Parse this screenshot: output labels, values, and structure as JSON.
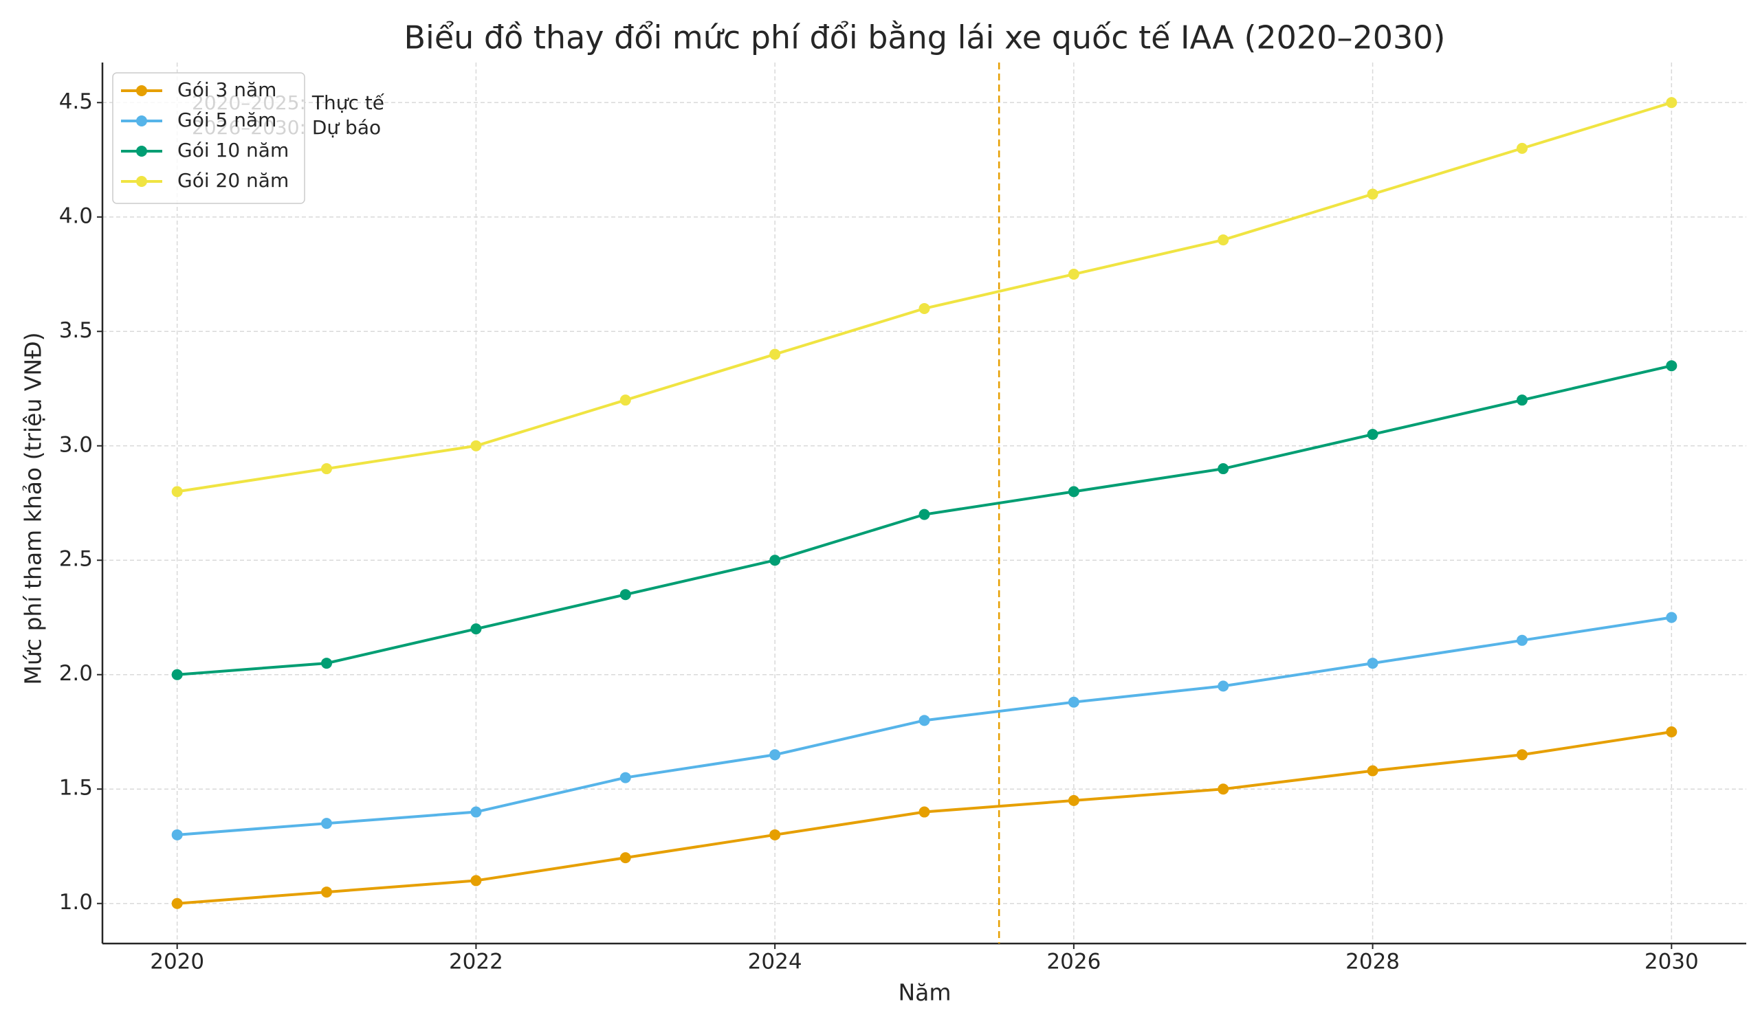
{
  "chart_data": {
    "type": "line",
    "title": "Biểu đồ thay đổi mức phí đổi bằng lái xe quốc tế IAA (2020–2030)",
    "x_label": "Năm",
    "y_label": "Mức phí tham khảo (triệu VNĐ)",
    "x": [
      2020,
      2021,
      2022,
      2023,
      2024,
      2025,
      2026,
      2027,
      2028,
      2029,
      2030
    ],
    "series": [
      {
        "name": "Gói 3 năm",
        "color": "#E69F00",
        "values": [
          1.0,
          1.05,
          1.1,
          1.2,
          1.3,
          1.4,
          1.45,
          1.5,
          1.58,
          1.65,
          1.75
        ]
      },
      {
        "name": "Gói 5 năm",
        "color": "#56B4E9",
        "values": [
          1.3,
          1.35,
          1.4,
          1.55,
          1.65,
          1.8,
          1.88,
          1.95,
          2.05,
          2.15,
          2.25
        ]
      },
      {
        "name": "Gói 10 năm",
        "color": "#009E73",
        "values": [
          2.0,
          2.05,
          2.2,
          2.35,
          2.5,
          2.7,
          2.8,
          2.9,
          3.05,
          3.2,
          3.35
        ]
      },
      {
        "name": "Gói 20 năm",
        "color": "#F0E442",
        "values": [
          2.8,
          2.9,
          3.0,
          3.2,
          3.4,
          3.6,
          3.75,
          3.9,
          4.1,
          4.3,
          4.5
        ]
      }
    ],
    "xlim": [
      2019.5,
      2030.5
    ],
    "xticks": [
      2020,
      2022,
      2024,
      2026,
      2028,
      2030
    ],
    "ylim": [
      0.825,
      4.675
    ],
    "yticks": [
      {
        "value": 1.0,
        "label": "1.0"
      },
      1.5,
      {
        "value": 2.0,
        "label": "2.0"
      },
      2.5,
      {
        "value": 3.0,
        "label": "3.0"
      },
      3.5,
      {
        "value": 4.0,
        "label": "4.0"
      },
      4.5
    ],
    "grid": true,
    "legend": "upper left",
    "vline": {
      "x": 2025.5,
      "color": "#E69F00"
    },
    "annotations": [
      "2020–2025: Thực tế",
      "2026–2030: Dự báo"
    ]
  }
}
